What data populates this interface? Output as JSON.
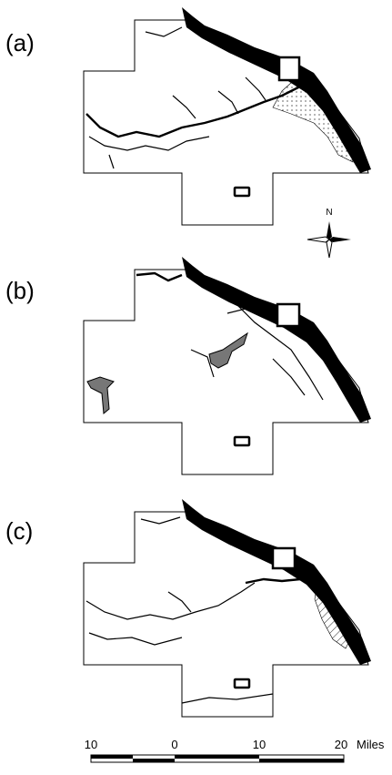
{
  "panels": [
    {
      "label": "(a)"
    },
    {
      "label": "(b)"
    },
    {
      "label": "(c)"
    }
  ],
  "compass": {
    "label": "N"
  },
  "scale_bar": {
    "ticks": [
      "10",
      "0",
      "10",
      "20"
    ],
    "unit": "Miles"
  }
}
